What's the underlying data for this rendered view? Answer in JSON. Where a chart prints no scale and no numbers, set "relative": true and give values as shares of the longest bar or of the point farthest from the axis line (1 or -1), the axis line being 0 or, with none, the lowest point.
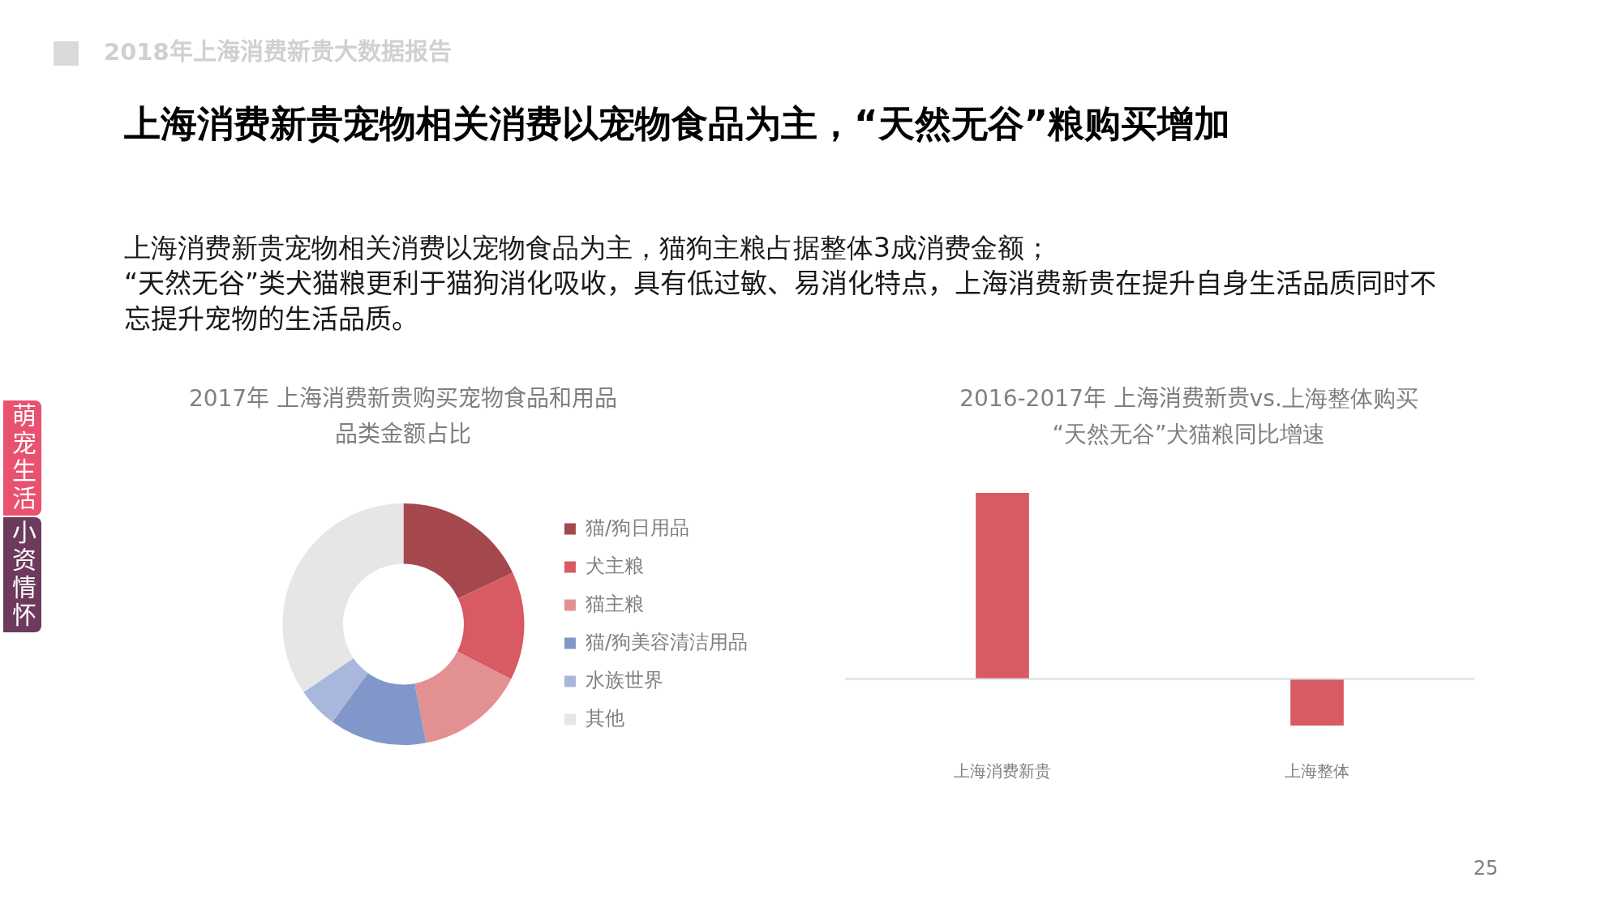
{
  "chart_data": [
    {
      "type": "other",
      "title": "上海消费新贵宠物相关消费以宠物食品为主，“天然无谷”粮购买增加",
      "subtitle": "上海消费新贵宠物相关消费以宠物食品为主，猫狗主粮占据整体3成消费金额；\n“天然无谷”类犬猫粮更利于猫狗消化吸收，具有低过敏、易消化特点，上海消费新贵在提升自身生活品质同时不忘提升宠物的生活品质。",
      "annotations": [
        "2018年上海消费新贵大数据报告",
        "萌宠生活",
        "小资情怀",
        "25"
      ]
    },
    {
      "type": "donut",
      "title": "2017年 上海消费新贵购买宠物食品和用品品类金额占比",
      "categories": [
        "猫/狗日用品",
        "犬主粮",
        "猫主粮",
        "猫/狗美容清洁用品",
        "水族世界",
        "其他"
      ],
      "values": [
        18,
        14.5,
        14.5,
        13,
        5.5,
        34.5
      ],
      "colors": [
        "#a5484e",
        "#d85a63",
        "#e39092",
        "#8197c9",
        "#a9b7dc",
        "#e6e6e6"
      ],
      "legend": "right"
    },
    {
      "type": "bar",
      "title": "2016-2017年 上海消费新贵vs.上海整体购买“天然无谷”犬猫粮同比增速",
      "categories": [
        "上海消费新贵",
        "上海整体"
      ],
      "values": [
        1,
        -0.25
      ],
      "color": "#d85a63",
      "relative": true
    }
  ]
}
